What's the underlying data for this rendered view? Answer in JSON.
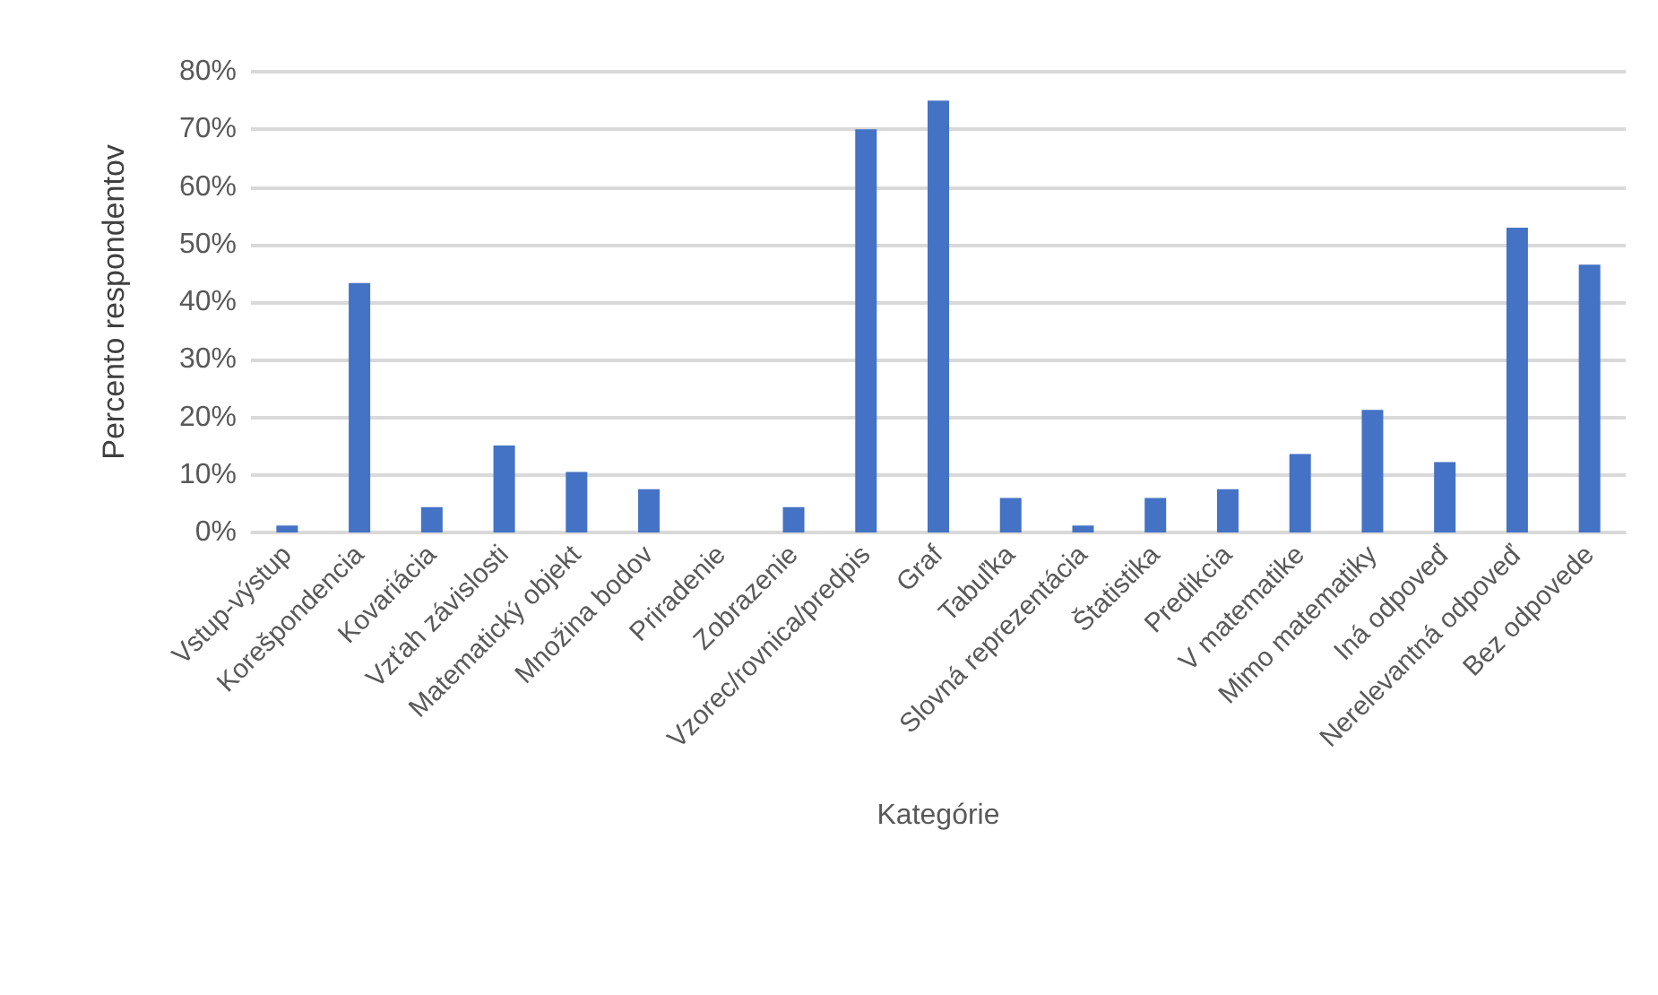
{
  "chart_data": {
    "type": "bar",
    "xlabel": "Kategórie",
    "ylabel": "Percento respondentov",
    "categories": [
      "Vstup-výstup",
      "Korešpondencia",
      "Kovariácia",
      "Vzťah závislosti",
      "Matematický objekt",
      "Množina bodov",
      "Priradenie",
      "Zobrazenie",
      "Vzorec/rovnica/predpis",
      "Graf",
      "Tabuľka",
      "Slovná reprezentácia",
      "Štatistika",
      "Predikcia",
      "V matematike",
      "Mimo matematiky",
      "Iná odpoveď",
      "Nerelevantná odpoveď",
      "Bez odpovede"
    ],
    "values": [
      1.2,
      43.3,
      4.4,
      15.1,
      10.5,
      7.5,
      0,
      4.4,
      70.0,
      75.0,
      6.0,
      1.2,
      6.0,
      7.5,
      13.6,
      21.3,
      12.2,
      52.9,
      46.5
    ],
    "color": "#4472c4",
    "ylim": [
      0,
      80
    ],
    "yticks": [
      {
        "value": 0,
        "label": "0%"
      },
      {
        "value": 10,
        "label": "10%"
      },
      {
        "value": 20,
        "label": "20%"
      },
      {
        "value": 30,
        "label": "30%"
      },
      {
        "value": 40,
        "label": "40%"
      },
      {
        "value": 50,
        "label": "50%"
      },
      {
        "value": 60,
        "label": "60%"
      },
      {
        "value": 70,
        "label": "70%"
      },
      {
        "value": 80,
        "label": "80%"
      }
    ],
    "grid": "y"
  }
}
